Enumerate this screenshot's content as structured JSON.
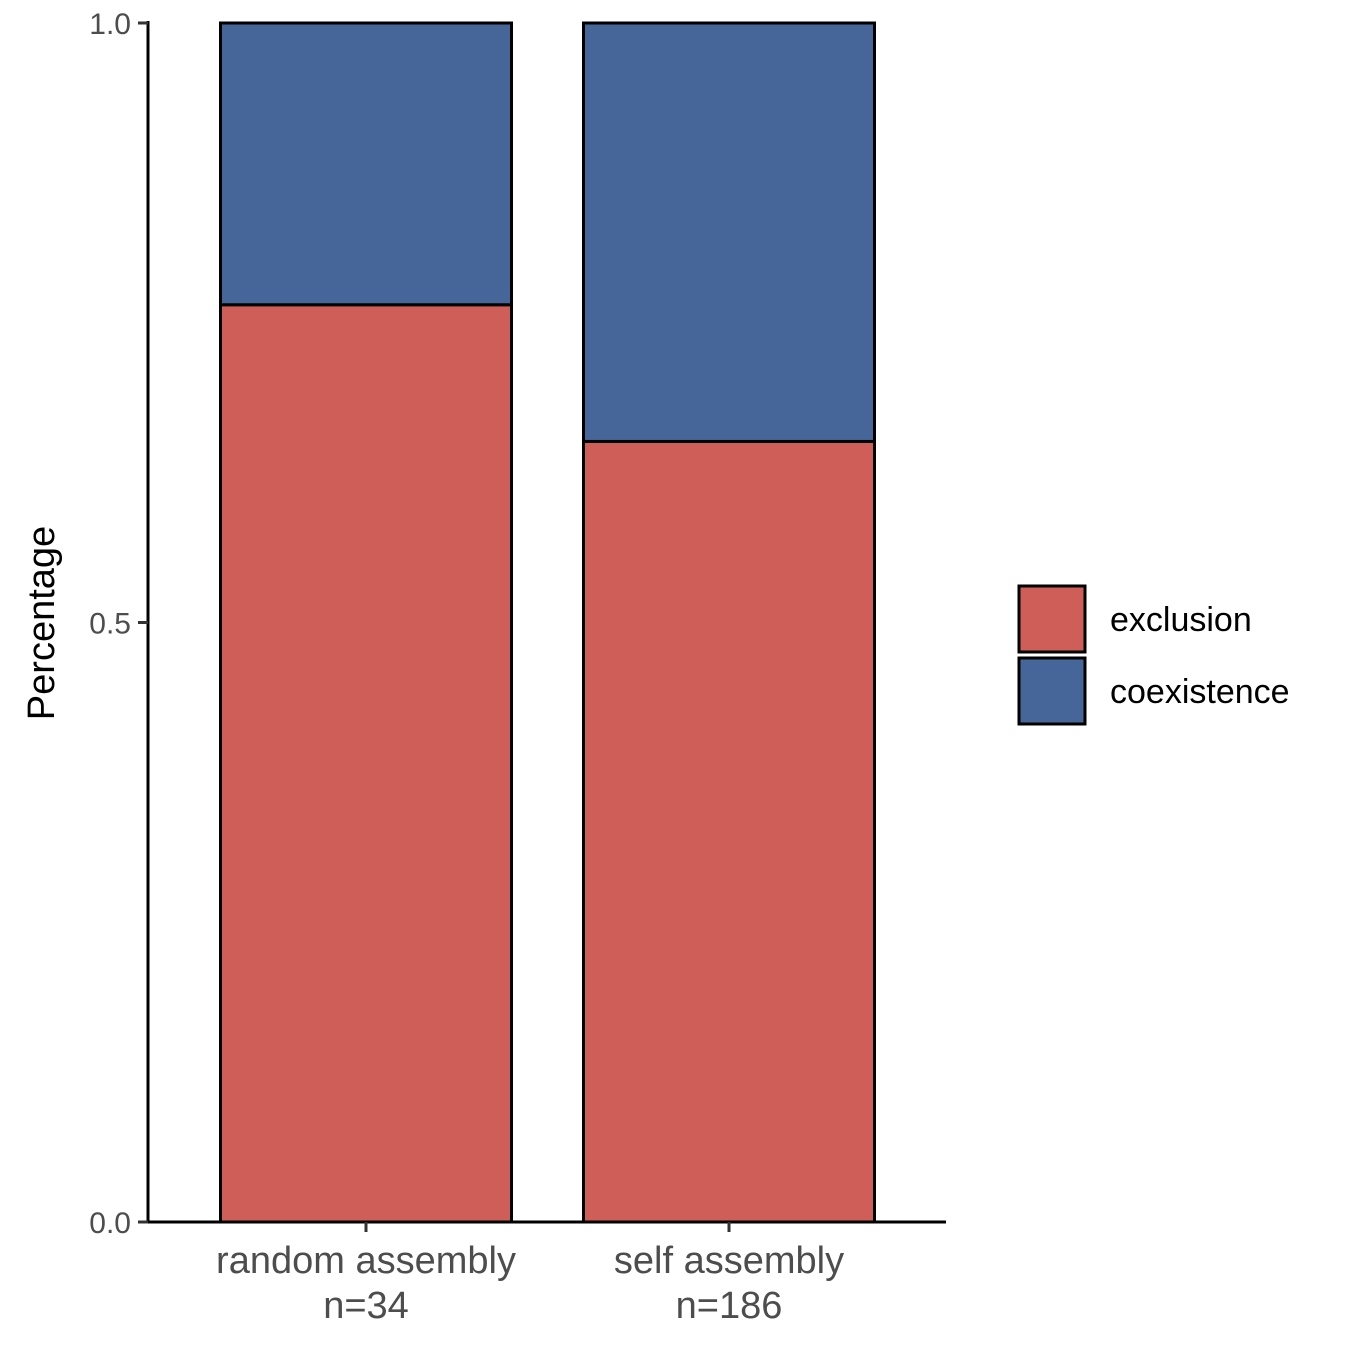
{
  "chart_data": {
    "type": "bar",
    "stacked": true,
    "title": "",
    "xlabel": "",
    "ylabel": "Percentage",
    "ylim": [
      0,
      1
    ],
    "yticks": [
      {
        "value": 0.0,
        "label": "0.0"
      },
      {
        "value": 0.5,
        "label": "0.5"
      },
      {
        "value": 1.0,
        "label": "1.0"
      }
    ],
    "categories": [
      {
        "name": "random assembly",
        "n_label": "n=34"
      },
      {
        "name": "self assembly",
        "n_label": "n=186"
      }
    ],
    "series": [
      {
        "name": "exclusion",
        "color": "#d05e58",
        "values": [
          0.765,
          0.651
        ]
      },
      {
        "name": "coexistence",
        "color": "#466699",
        "values": [
          0.235,
          0.349
        ]
      }
    ],
    "legend": {
      "position": "right"
    },
    "grid": false
  }
}
